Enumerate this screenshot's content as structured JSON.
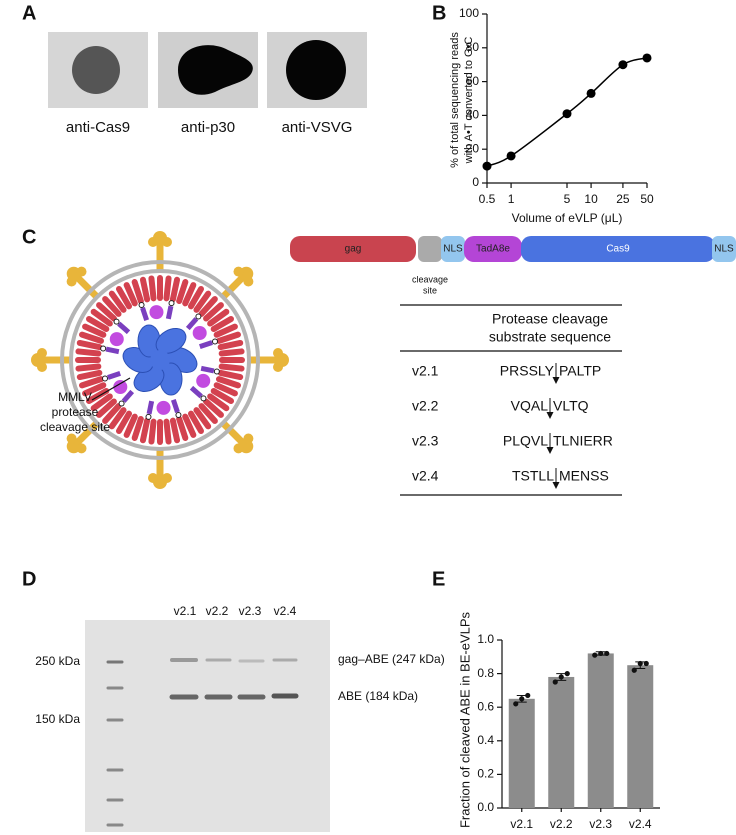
{
  "panels": {
    "letters": [
      "A",
      "B",
      "C",
      "D",
      "E"
    ],
    "blots": [
      "anti-Cas9",
      "anti-p30",
      "anti-VSVG"
    ],
    "virus_label": [
      "MMLV",
      "protease",
      "cleavage site"
    ],
    "domains": [
      "gag",
      "NLS",
      "TadA8e",
      "Cas9",
      "NLS"
    ],
    "cleavage_label": [
      "cleavage",
      "site"
    ],
    "table": {
      "header": [
        "Protease cleavage",
        "substrate sequence"
      ],
      "rows": [
        {
          "version": "v2.1",
          "left": "PRSSLY",
          "right": "PALTP"
        },
        {
          "version": "v2.2",
          "left": "VQAL",
          "right": "VLTQ"
        },
        {
          "version": "v2.3",
          "left": "PLQVL",
          "right": "TLNIERR"
        },
        {
          "version": "v2.4",
          "left": "TSTLL",
          "right": "MENSS"
        }
      ]
    },
    "gel": {
      "lanes": [
        "v2.1",
        "v2.2",
        "v2.3",
        "v2.4"
      ],
      "markers": [
        "250 kDa",
        "150 kDa"
      ],
      "bands": [
        "gag–ABE (247 kDa)",
        "ABE (184 kDa)"
      ]
    }
  },
  "chart_data": [
    {
      "type": "line",
      "xlabel": "Volume of eVLP (μL)",
      "ylabel": [
        "% of total sequencing reads",
        "with A•T converted to G•C"
      ],
      "x": [
        0.5,
        1,
        5,
        10,
        25,
        50
      ],
      "values": [
        10,
        16,
        41,
        53,
        70,
        74
      ],
      "color": "#000000",
      "xscale": "log",
      "xlim": [
        0.5,
        50
      ],
      "xticks": [
        0.5,
        1,
        5,
        10,
        25,
        50
      ],
      "ylim": [
        0,
        100
      ],
      "yticks": [
        0,
        20,
        40,
        60,
        80,
        100
      ]
    },
    {
      "type": "bar",
      "ylabel": "Fraction of cleaved ABE in BE-eVLPs",
      "categories": [
        "v2.1",
        "v2.2",
        "v2.3",
        "v2.4"
      ],
      "values": [
        0.65,
        0.78,
        0.92,
        0.85
      ],
      "errors": [
        0.02,
        0.02,
        0.01,
        0.02
      ],
      "points": [
        [
          0.62,
          0.65,
          0.67
        ],
        [
          0.75,
          0.78,
          0.8
        ],
        [
          0.91,
          0.92,
          0.92
        ],
        [
          0.82,
          0.86,
          0.86
        ]
      ],
      "color": "#8c8c8c",
      "ylim": [
        0,
        1
      ],
      "yticks": [
        {
          "value": 0,
          "label": "0.0"
        },
        0.2,
        0.4,
        0.6,
        0.8,
        {
          "value": 1,
          "label": "1.0"
        }
      ]
    }
  ]
}
